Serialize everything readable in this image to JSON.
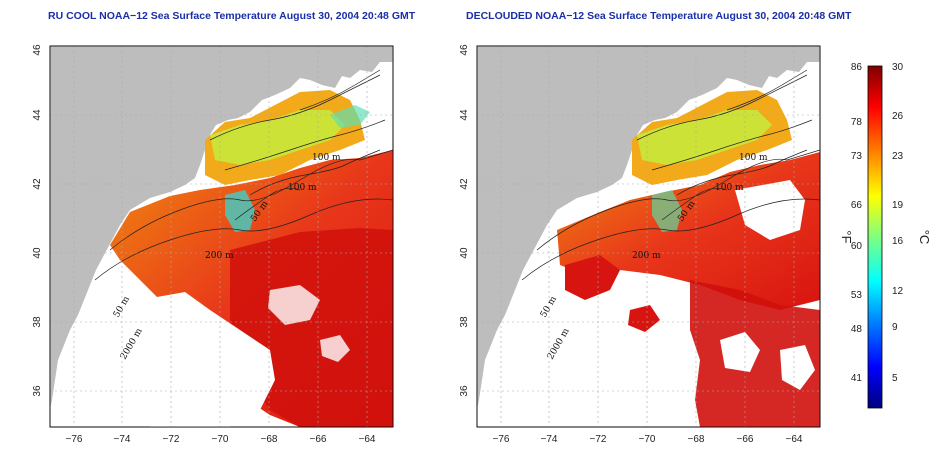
{
  "panels": [
    {
      "id": "left",
      "title": "RU COOL NOAA−12 Sea Surface Temperature August 30, 2004 20:48 GMT",
      "contour_labels": [
        "100 m",
        "100 m",
        "50 m",
        "200 m",
        "50 m",
        "2000 m"
      ]
    },
    {
      "id": "right",
      "title": "DECLOUDED NOAA−12 Sea Surface Temperature August 30, 2004 20:48 GMT",
      "contour_labels": [
        "100 m",
        "100 m",
        "50 m",
        "200 m",
        "50 m",
        "2000 m"
      ]
    }
  ],
  "axes": {
    "lon_ticks": [
      "−76",
      "−74",
      "−72",
      "−70",
      "−68",
      "−66",
      "−64"
    ],
    "lat_ticks": [
      "36",
      "38",
      "40",
      "42",
      "44",
      "46"
    ],
    "lon_range": [
      -77,
      -63
    ],
    "lat_range": [
      35,
      46
    ],
    "grid": "dotted"
  },
  "colorbar": {
    "fahrenheit_ticks": [
      "86",
      "78",
      "73",
      "66",
      "60",
      "53",
      "48",
      "41"
    ],
    "celsius_ticks": [
      "30",
      "26",
      "23",
      "19",
      "16",
      "12",
      "9",
      "5"
    ],
    "fahrenheit_unit": "°F",
    "celsius_unit": "°C",
    "range_c": [
      2,
      30
    ],
    "colors": [
      "#00007f",
      "#0000ff",
      "#007fff",
      "#00ffff",
      "#7fff7f",
      "#ffff00",
      "#ff7f00",
      "#ff0000",
      "#7f0000"
    ]
  },
  "colors": {
    "land": "#bdbdbd",
    "no_data": "#ffffff",
    "title": "#1a2fa8"
  }
}
